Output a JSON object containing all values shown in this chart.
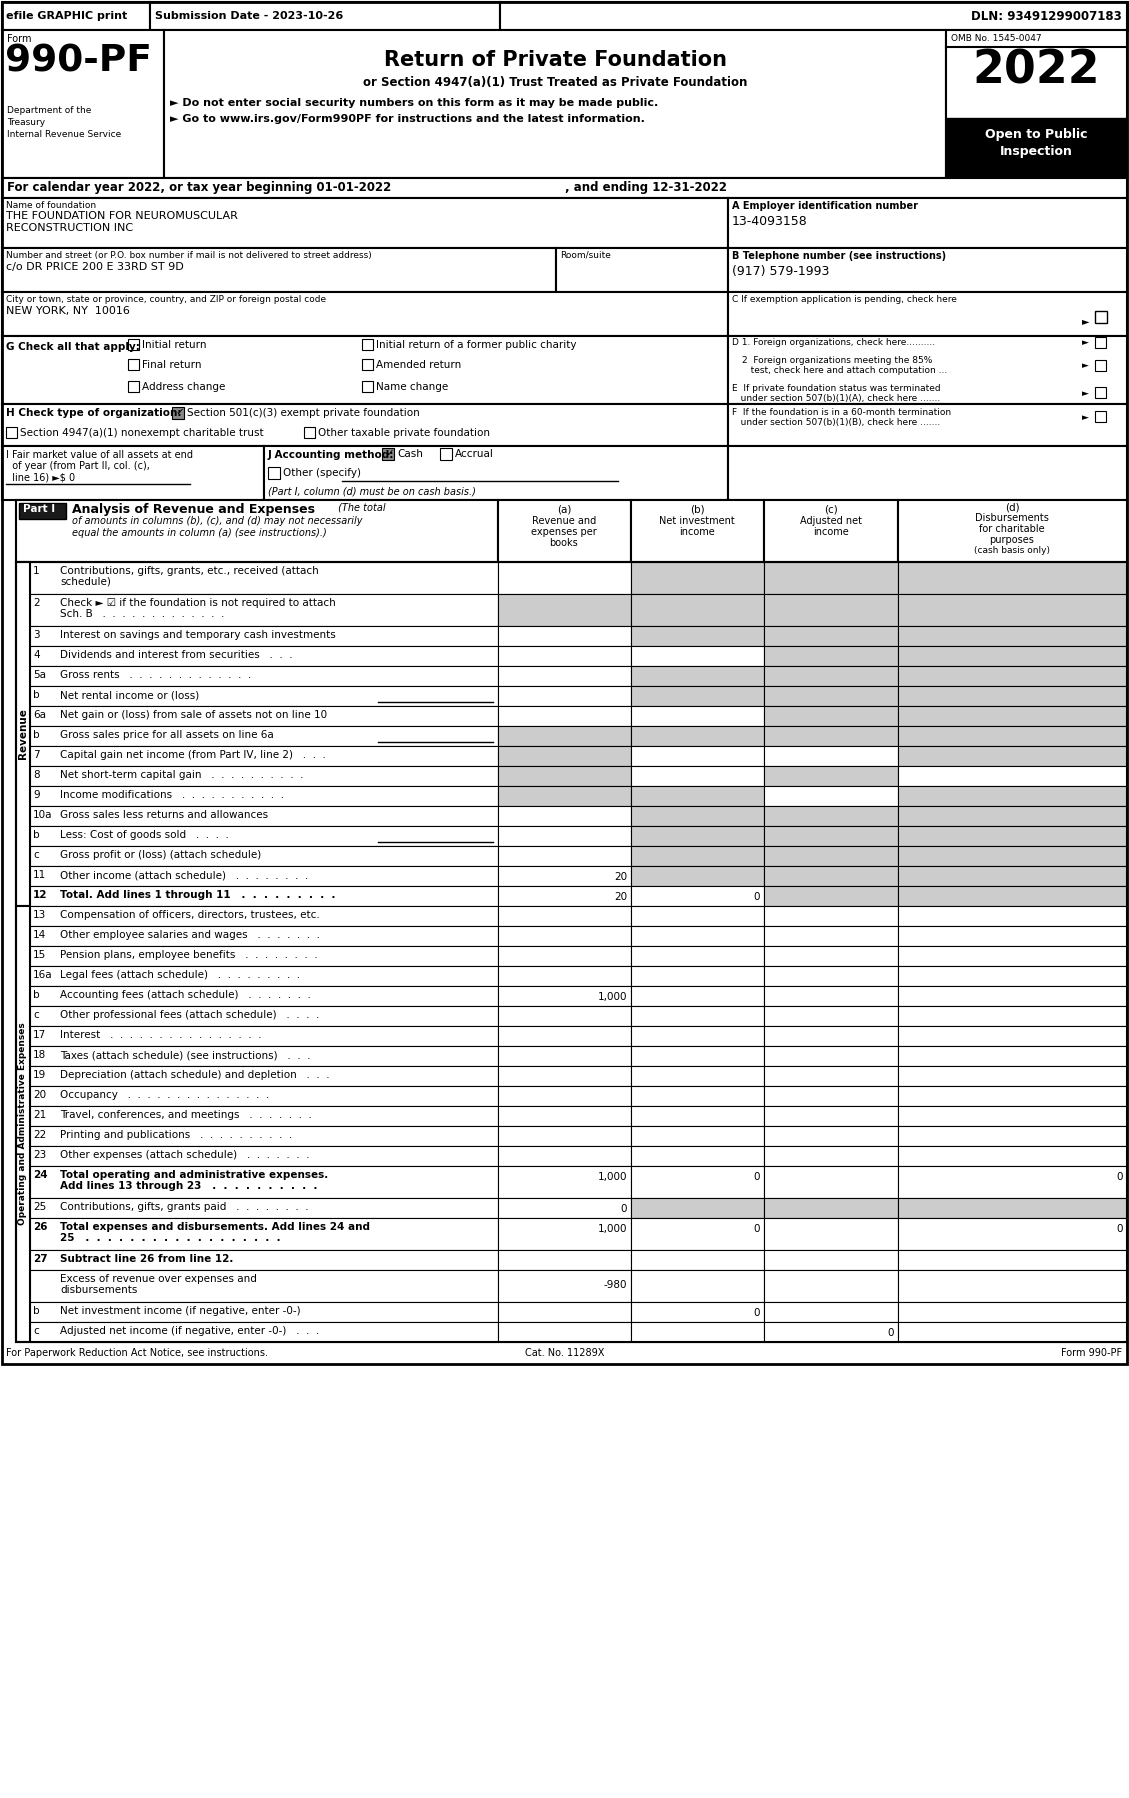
{
  "title_top": "efile GRAPHIC print",
  "submission_date": "Submission Date - 2023-10-26",
  "dln": "DLN: 93491299007183",
  "form_number": "990-PF",
  "return_title": "Return of Private Foundation",
  "return_subtitle": "or Section 4947(a)(1) Trust Treated as Private Foundation",
  "bullet1": "► Do not enter social security numbers on this form as it may be made public.",
  "bullet2": "► Go to www.irs.gov/Form990PF for instructions and the latest information.",
  "year": "2022",
  "omb": "OMB No. 1545-0047",
  "dept1": "Department of the",
  "dept2": "Treasury",
  "dept3": "Internal Revenue Service",
  "cal_year": "For calendar year 2022, or tax year beginning 01-01-2022",
  "ending": ", and ending 12-31-2022",
  "name_label": "Name of foundation",
  "name_line1": "THE FOUNDATION FOR NEUROMUSCULAR",
  "name_line2": "RECONSTRUCTION INC",
  "ein_label": "A Employer identification number",
  "ein_value": "13-4093158",
  "address_label": "Number and street (or P.O. box number if mail is not delivered to street address)",
  "address_value": "c/o DR PRICE 200 E 33RD ST 9D",
  "room_label": "Room/suite",
  "phone_label": "B Telephone number (see instructions)",
  "phone_value": "(917) 579-1993",
  "city_label": "City or town, state or province, country, and ZIP or foreign postal code",
  "city_value": "NEW YORK, NY  10016",
  "col_a": "(a)\nRevenue and\nexpenses per\nbooks",
  "col_b": "(b)\nNet investment\nincome",
  "col_c": "(c)\nAdjusted net\nincome",
  "col_d": "(d)\nDisbursements\nfor charitable\npurposes\n(cash basis only)",
  "gray": "#cccccc",
  "black": "#000000",
  "white": "#ffffff",
  "darkgray": "#888888",
  "footer_left": "For Paperwork Reduction Act Notice, see instructions.",
  "footer_cat": "Cat. No. 11289X",
  "footer_form": "Form 990-PF"
}
